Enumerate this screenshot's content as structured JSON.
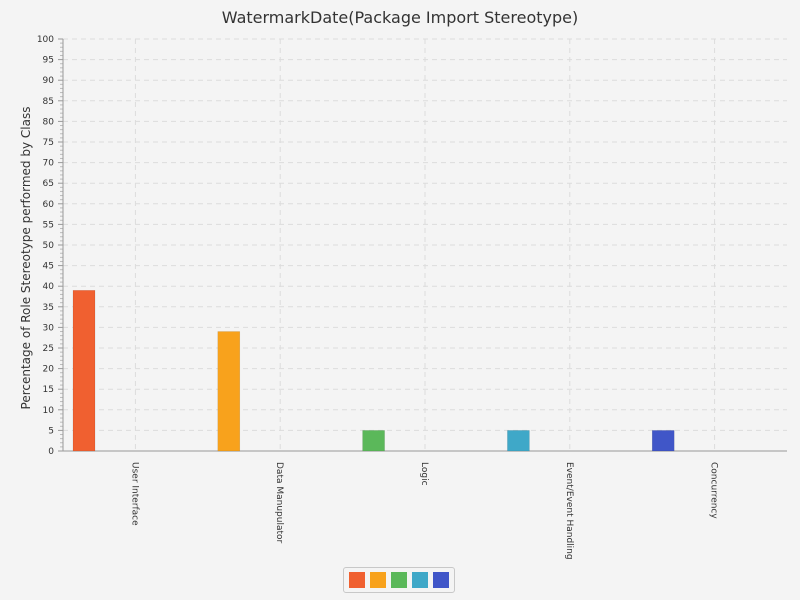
{
  "chart_data": {
    "type": "bar",
    "title": "WatermarkDate(Package Import Stereotype)",
    "xlabel": "",
    "ylabel": "Percentage of Role Stereotype performed by Class",
    "ylim": [
      0,
      100
    ],
    "ytick_step": 5,
    "grid": true,
    "legend_position": "bottom",
    "categories": [
      "User Interface",
      "Data Manupulator",
      "Logic",
      "Event/Event Handling",
      "Concurrency"
    ],
    "series": [
      {
        "values": [
          39,
          null,
          null,
          null,
          null
        ],
        "color": "#f06030"
      },
      {
        "values": [
          null,
          29,
          null,
          null,
          null
        ],
        "color": "#f8a21c"
      },
      {
        "values": [
          null,
          null,
          5,
          null,
          null
        ],
        "color": "#5bb85a"
      },
      {
        "values": [
          null,
          null,
          null,
          5,
          null
        ],
        "color": "#3fa8c8"
      },
      {
        "values": [
          null,
          null,
          null,
          null,
          5
        ],
        "color": "#4056c8"
      }
    ]
  }
}
